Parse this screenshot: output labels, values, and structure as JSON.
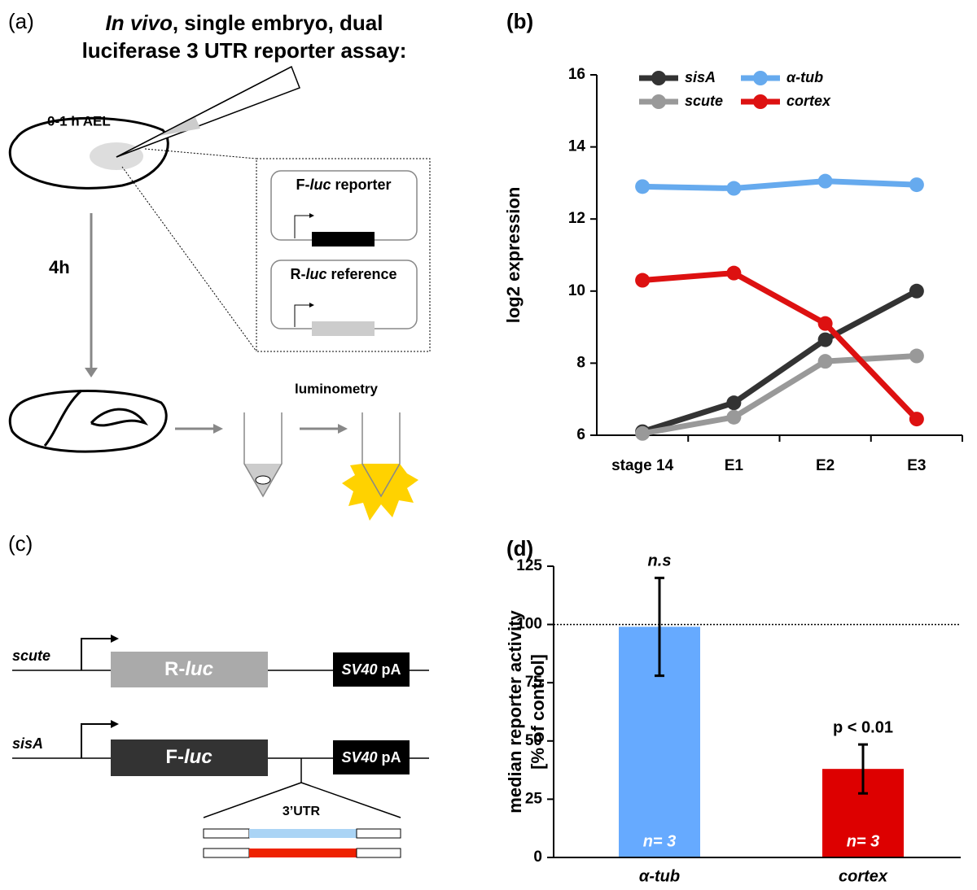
{
  "panel_a": {
    "label": "(a)",
    "title_italic": "In vivo",
    "title_line1": ", single embryo, dual",
    "title_line2": "luciferase 3 UTR reporter assay:",
    "stage_label": "0-1 h AEL",
    "reporter": [
      "F-",
      "luc",
      " reporter"
    ],
    "reference": [
      "R-",
      "luc",
      " reference"
    ],
    "time": "4h",
    "readout": "luminometry"
  },
  "panel_c": {
    "label": "(c)",
    "construct1_gene": "scute",
    "construct1_box": [
      "R-",
      "luc"
    ],
    "construct1_pa": [
      "SV40",
      " pA"
    ],
    "construct2_gene": "sisA",
    "construct2_box": [
      "F-",
      "luc"
    ],
    "construct2_pa": [
      "SV40",
      " pA"
    ],
    "utr": "3’UTR"
  },
  "chart_data": [
    {
      "type": "line",
      "panel_label": "(b)",
      "y_label": "log2 expression",
      "categories": [
        "stage 14",
        "E1",
        "E2",
        "E3"
      ],
      "series": [
        {
          "name": "sisA",
          "color": "#333333",
          "values": [
            6.1,
            6.9,
            8.65,
            10.0
          ]
        },
        {
          "name": "α-tub",
          "color": "#66aaee",
          "values": [
            12.9,
            12.85,
            13.05,
            12.95
          ]
        },
        {
          "name": "scute",
          "color": "#999999",
          "values": [
            6.05,
            6.5,
            8.05,
            8.2
          ]
        },
        {
          "name": "cortex",
          "color": "#dd1111",
          "values": [
            10.3,
            10.5,
            9.1,
            6.45
          ]
        }
      ],
      "ylim": [
        6,
        16
      ],
      "yticks": [
        6,
        8,
        10,
        12,
        14,
        16
      ],
      "legend": "top"
    },
    {
      "type": "bar",
      "panel_label": "(d)",
      "y_label": [
        "median reporter activity",
        "[% of control]"
      ],
      "categories": [
        "α-tub",
        "cortex"
      ],
      "values": [
        99,
        38
      ],
      "errors": [
        21,
        10.5
      ],
      "colors": [
        "#66aaff",
        "#dd0000"
      ],
      "annotations": [
        "n.s",
        "p < 0.01"
      ],
      "bar_labels": [
        "n= 3",
        "n= 3"
      ],
      "ylim": [
        0,
        125
      ],
      "yticks": [
        0,
        25,
        50,
        75,
        100,
        125
      ],
      "reference_line": 100
    }
  ]
}
